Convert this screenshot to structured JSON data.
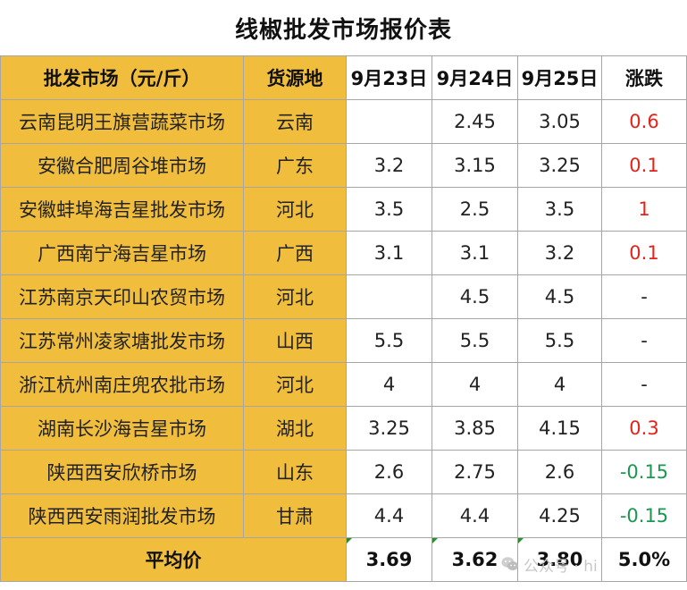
{
  "title": "线椒批发市场报价表",
  "header": {
    "market": "批发市场（元/斤）",
    "origin": "货源地",
    "d1": "9月23日",
    "d2": "9月24日",
    "d3": "9月25日",
    "change": "涨跌"
  },
  "rows": [
    {
      "market": "云南昆明王旗营蔬菜市场",
      "origin": "云南",
      "d1": "",
      "d2": "2.45",
      "d3": "3.05",
      "change": "0.6"
    },
    {
      "market": "安徽合肥周谷堆市场",
      "origin": "广东",
      "d1": "3.2",
      "d2": "3.15",
      "d3": "3.25",
      "change": "0.1"
    },
    {
      "market": "安徽蚌埠海吉星批发市场",
      "origin": "河北",
      "d1": "3.5",
      "d2": "2.5",
      "d3": "3.5",
      "change": "1"
    },
    {
      "market": "广西南宁海吉星市场",
      "origin": "广西",
      "d1": "3.1",
      "d2": "3.1",
      "d3": "3.2",
      "change": "0.1"
    },
    {
      "market": "江苏南京天印山农贸市场",
      "origin": "河北",
      "d1": "",
      "d2": "4.5",
      "d3": "4.5",
      "change": "-"
    },
    {
      "market": "江苏常州凌家塘批发市场",
      "origin": "山西",
      "d1": "5.5",
      "d2": "5.5",
      "d3": "5.5",
      "change": "-"
    },
    {
      "market": "浙江杭州南庄兜农批市场",
      "origin": "河北",
      "d1": "4",
      "d2": "4",
      "d3": "4",
      "change": "-"
    },
    {
      "market": "湖南长沙海吉星市场",
      "origin": "湖北",
      "d1": "3.25",
      "d2": "3.85",
      "d3": "4.15",
      "change": "0.3"
    },
    {
      "market": "陕西西安欣桥市场",
      "origin": "山东",
      "d1": "2.6",
      "d2": "2.75",
      "d3": "2.6",
      "change": "-0.15"
    },
    {
      "market": "陕西西安雨润批发市场",
      "origin": "甘肃",
      "d1": "4.4",
      "d2": "4.4",
      "d3": "4.25",
      "change": "-0.15"
    }
  ],
  "footer": {
    "label": "平均价",
    "d1": "3.69",
    "d2": "3.62",
    "d3": "3.80",
    "change": "5.0%"
  },
  "colors": {
    "header_bg": "#f0be3c",
    "rise": "#e2231a",
    "fall": "#1a9850",
    "border": "#a6a6a6"
  },
  "watermark": {
    "icon": "wechat-icon",
    "text": "公众号 · hi"
  }
}
